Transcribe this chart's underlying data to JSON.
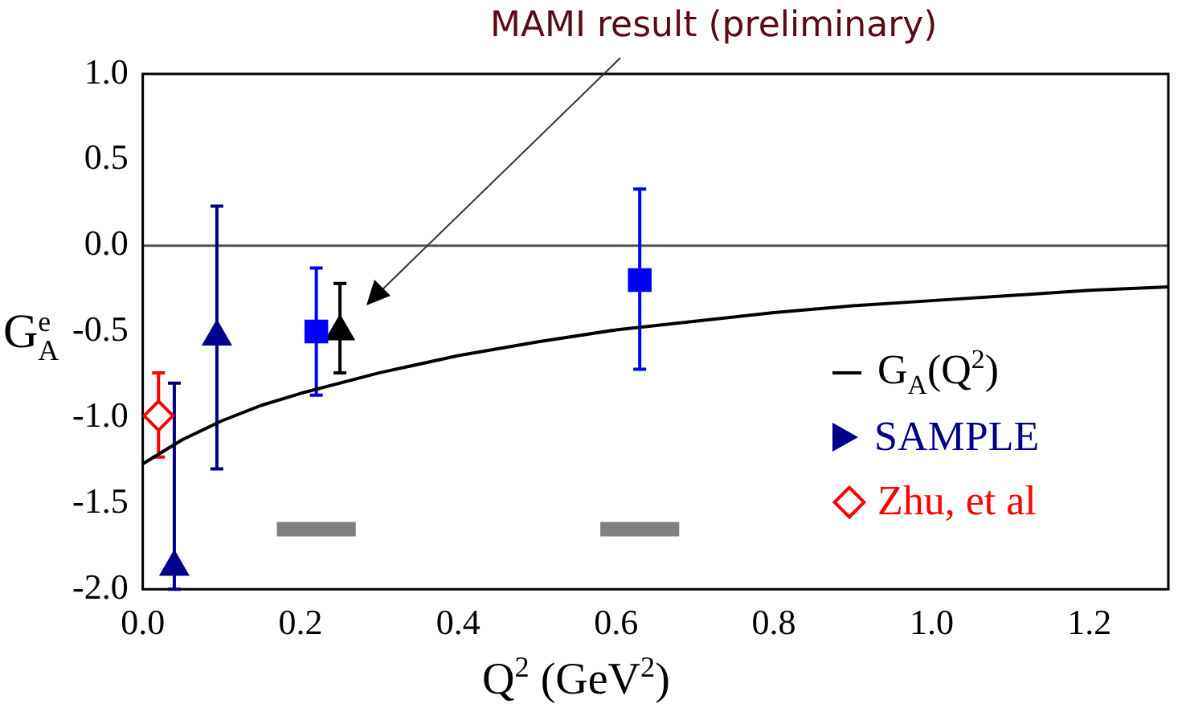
{
  "chart_data": {
    "type": "scatter",
    "xlabel": "Q$^{2}$ (GeV$^{2}$)",
    "ylabel": "G$^{e}$$_{A}$",
    "xlim": [
      0,
      1.3
    ],
    "ylim": [
      -2,
      1
    ],
    "xticks": [
      {
        "value": 0,
        "label": "0.0"
      },
      {
        "value": 0.2,
        "label": "0.2"
      },
      {
        "value": 0.4,
        "label": "0.4"
      },
      {
        "value": 0.6,
        "label": "0.6"
      },
      {
        "value": 0.8,
        "label": "0.8"
      },
      {
        "value": 1,
        "label": "1.0"
      },
      {
        "value": 1.2,
        "label": "1.2"
      }
    ],
    "yticks": [
      {
        "value": 1,
        "label": "1.0"
      },
      {
        "value": 0.5,
        "label": "0.5"
      },
      {
        "value": 0,
        "label": "0.0"
      },
      {
        "value": -0.5,
        "label": "-0.5"
      },
      {
        "value": -1,
        "label": "-1.0"
      },
      {
        "value": -1.5,
        "label": "-1.5"
      },
      {
        "value": -2,
        "label": "-2.0"
      }
    ],
    "grid": false,
    "legend": "right",
    "series": [
      {
        "name": "G$_{A}$(Q$^{2}$)",
        "type": "line",
        "color": "#000000",
        "marker": "none",
        "x": [
          0,
          0.05,
          0.1,
          0.15,
          0.2,
          0.3,
          0.4,
          0.5,
          0.6,
          0.7,
          0.8,
          0.9,
          1.0,
          1.1,
          1.2,
          1.3
        ],
        "values": [
          -1.27,
          -1.13,
          -1.02,
          -0.93,
          -0.86,
          -0.74,
          -0.64,
          -0.56,
          -0.49,
          -0.44,
          -0.39,
          -0.35,
          -0.32,
          -0.29,
          -0.26,
          -0.24
        ]
      },
      {
        "name": "SAMPLE",
        "color": "#00008b",
        "marker": "triangle",
        "x": [
          0.094,
          0.04
        ],
        "values": [
          -0.53,
          -1.87
        ],
        "errors": [
          [
            -1.3,
            0.23
          ],
          [
            -2.0,
            -0.8
          ]
        ]
      },
      {
        "name": "Zhu, et al",
        "color": "#ff0000",
        "marker": "diamond",
        "x": [
          0.02
        ],
        "values": [
          -0.99
        ],
        "errors": [
          [
            -1.23,
            -0.74
          ]
        ]
      },
      {
        "color": "#0000ff",
        "marker": "square",
        "x": [
          0.22,
          0.63
        ],
        "values": [
          -0.5,
          -0.2
        ],
        "errors": [
          [
            -0.87,
            -0.13
          ],
          [
            -0.72,
            0.33
          ]
        ]
      },
      {
        "color": "#000000",
        "marker": "triangle",
        "x": [
          0.25
        ],
        "values": [
          -0.5
        ],
        "errors": [
          [
            -0.74,
            -0.22
          ]
        ]
      },
      {
        "type": "line",
        "color": "#808080",
        "marker": "none",
        "x": [
          0.17,
          0.27
        ],
        "values": [
          -1.65,
          -1.65
        ]
      },
      {
        "type": "line",
        "color": "#808080",
        "marker": "none",
        "x": [
          0.58,
          0.68
        ],
        "values": [
          -1.65,
          -1.65
        ]
      }
    ],
    "ref_lines": [
      {
        "axis": "y",
        "value": 0,
        "color": "#555555"
      }
    ],
    "annotations": [
      "MAMI result (preliminary)"
    ]
  }
}
